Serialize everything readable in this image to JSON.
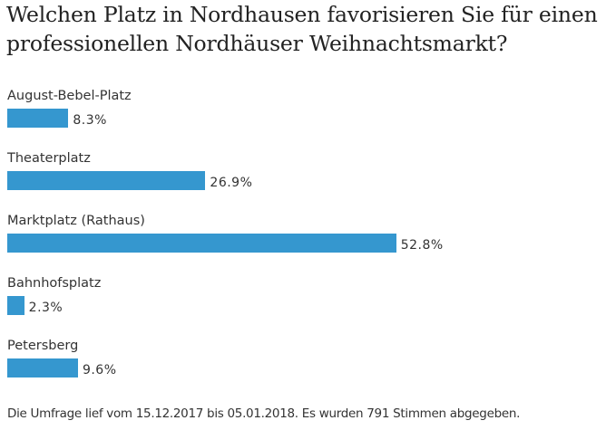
{
  "chart_data": {
    "type": "bar",
    "orientation": "horizontal",
    "title": "Welchen Platz in Nordhausen favorisieren Sie für einen professionellen Nordhäuser Weihnachtsmarkt?",
    "categories": [
      "August-Bebel-Platz",
      "Theaterplatz",
      "Marktplatz (Rathaus)",
      "Bahnhofsplatz",
      "Petersberg"
    ],
    "values": [
      8.3,
      26.9,
      52.8,
      2.3,
      9.6
    ],
    "value_labels": [
      "8.3%",
      "26.9%",
      "52.8%",
      "2.3%",
      "9.6%"
    ],
    "unit": "%",
    "bar_color": "#3597cf",
    "grid": false,
    "legend": "none"
  },
  "footer": "Die Umfrage lief vom 15.12.2017 bis 05.01.2018. Es wurden 791 Stimmen abgegeben."
}
